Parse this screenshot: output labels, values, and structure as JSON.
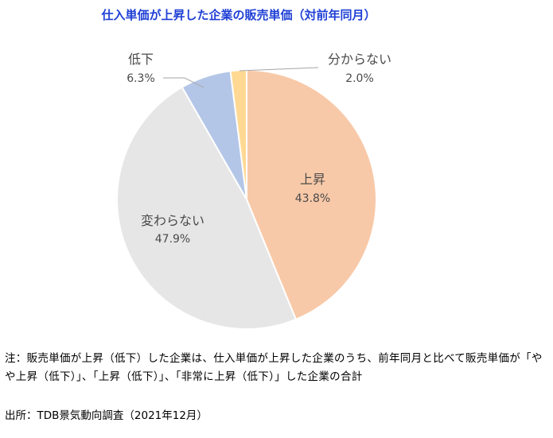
{
  "chart_data": {
    "type": "pie",
    "title": "仕入単価が上昇した企業の販売単価（対前年同月）",
    "categories": [
      "上昇",
      "変わらない",
      "低下",
      "分からない"
    ],
    "values": [
      43.8,
      47.9,
      6.3,
      2.0
    ],
    "value_labels": [
      "43.8%",
      "47.9%",
      "6.3%",
      "2.0%"
    ],
    "colors": [
      "#f8c9a8",
      "#e6e6e6",
      "#b4c6e7",
      "#ffd993"
    ],
    "start_angle_deg": 0,
    "direction": "clockwise",
    "legend": "none"
  },
  "note": "注：販売単価が上昇（低下）した企業は、仕入単価が上昇した企業のうち、前年同月と比べて販売単価が「やや上昇（低下）」、「上昇（低下）」、「非常に上昇（低下）」した企業の合計",
  "source": "出所：TDB景気動向調査（2021年12月）"
}
